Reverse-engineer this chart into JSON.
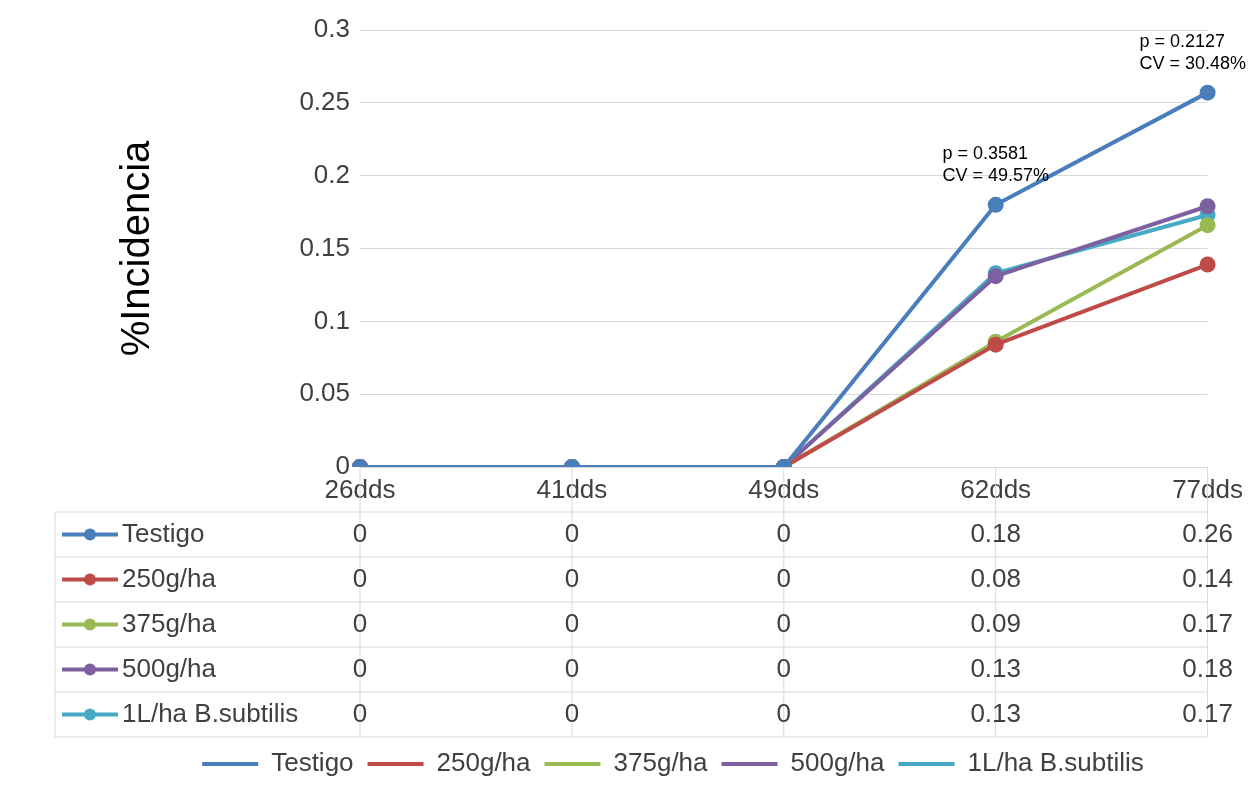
{
  "chart_data": {
    "type": "line",
    "ylabel": "%Incidencia",
    "categories": [
      "26dds",
      "41dds",
      "49dds",
      "62dds",
      "77dds"
    ],
    "series": [
      {
        "name": "Testigo",
        "color": "#4a7ebb",
        "values": [
          0,
          0,
          0,
          0.18,
          0.257
        ],
        "value_labels": [
          "0",
          "0",
          "0",
          "0.18",
          "0.26"
        ]
      },
      {
        "name": "250g/ha",
        "color": "#be4b48",
        "values": [
          0,
          0,
          0,
          0.084,
          0.139
        ],
        "value_labels": [
          "0",
          "0",
          "0",
          "0.08",
          "0.14"
        ]
      },
      {
        "name": "375g/ha",
        "color": "#98b954",
        "values": [
          0,
          0,
          0,
          0.086,
          0.166
        ],
        "value_labels": [
          "0",
          "0",
          "0",
          "0.09",
          "0.17"
        ]
      },
      {
        "name": "500g/ha",
        "color": "#7d60a0",
        "values": [
          0,
          0,
          0,
          0.131,
          0.179
        ],
        "value_labels": [
          "0",
          "0",
          "0",
          "0.13",
          "0.18"
        ]
      },
      {
        "name": "1L/ha B.subtilis",
        "color": "#46aac5",
        "values": [
          0,
          0,
          0,
          0.133,
          0.173
        ],
        "value_labels": [
          "0",
          "0",
          "0",
          "0.13",
          "0.17"
        ]
      }
    ],
    "ylim": [
      0,
      0.3
    ],
    "yticks": [
      0,
      0.05,
      0.1,
      0.15,
      0.2,
      0.25,
      0.3
    ],
    "grid": "y",
    "legend": "bottom",
    "marker": "circle",
    "annotations": [
      {
        "text": "p = 0.3581\nCV = 49.57%",
        "x": "62dds",
        "y": 0.18
      },
      {
        "text": "p = 0.2127\nCV = 30.48%",
        "x": "77dds",
        "y": 0.257
      }
    ]
  }
}
